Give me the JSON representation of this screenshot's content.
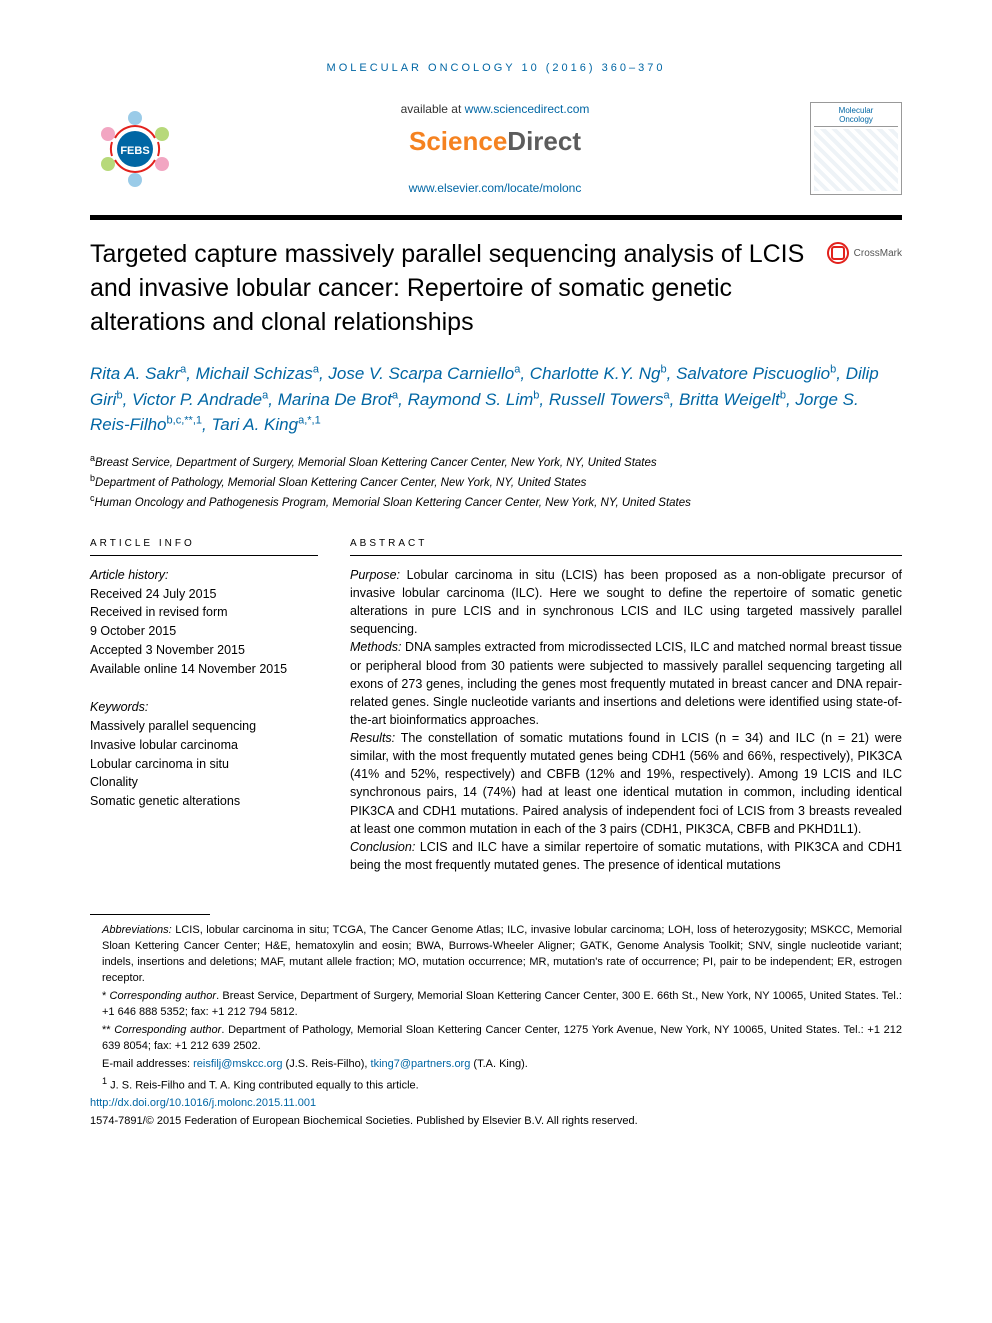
{
  "running_head": "MOLECULAR ONCOLOGY 10 (2016) 360–370",
  "masthead": {
    "available_prefix": "available at ",
    "available_link": "www.sciencedirect.com",
    "sd_sci": "Science",
    "sd_dir": "Direct",
    "locate": "www.elsevier.com/locate/molonc",
    "febs_label": "FEBS",
    "journal_name_line1": "Molecular",
    "journal_name_line2": "Oncology",
    "crossmark": "CrossMark"
  },
  "title": "Targeted capture massively parallel sequencing analysis of LCIS and invasive lobular cancer: Repertoire of somatic genetic alterations and clonal relationships",
  "authors_html": "Rita A. Sakr<sup>a</sup>, Michail Schizas<sup>a</sup>, Jose V. Scarpa Carniello<sup>a</sup>, Charlotte K.Y. Ng<sup>b</sup>, Salvatore Piscuoglio<sup>b</sup>, Dilip Giri<sup>b</sup>, Victor P. Andrade<sup>a</sup>, Marina De Brot<sup>a</sup>, Raymond S. Lim<sup>b</sup>, Russell Towers<sup>a</sup>, Britta Weigelt<sup>b</sup>, Jorge S. Reis-Filho<sup>b,c,**,1</sup>, Tari A. King<sup>a,*,1</sup>",
  "affiliations": [
    {
      "sup": "a",
      "text": "Breast Service, Department of Surgery, Memorial Sloan Kettering Cancer Center, New York, NY, United States"
    },
    {
      "sup": "b",
      "text": "Department of Pathology, Memorial Sloan Kettering Cancer Center, New York, NY, United States"
    },
    {
      "sup": "c",
      "text": "Human Oncology and Pathogenesis Program, Memorial Sloan Kettering Cancer Center, New York, NY, United States"
    }
  ],
  "article_info": {
    "label": "ARTICLE INFO",
    "history_hd": "Article history:",
    "history": [
      "Received 24 July 2015",
      "Received in revised form",
      "9 October 2015",
      "Accepted 3 November 2015",
      "Available online 14 November 2015"
    ],
    "keywords_hd": "Keywords:",
    "keywords": [
      "Massively parallel sequencing",
      "Invasive lobular carcinoma",
      "Lobular carcinoma in situ",
      "Clonality",
      "Somatic genetic alterations"
    ]
  },
  "abstract": {
    "label": "ABSTRACT",
    "purpose_hd": "Purpose:",
    "purpose": " Lobular carcinoma in situ (LCIS) has been proposed as a non-obligate precursor of invasive lobular carcinoma (ILC). Here we sought to define the repertoire of somatic genetic alterations in pure LCIS and in synchronous LCIS and ILC using targeted massively parallel sequencing.",
    "methods_hd": "Methods:",
    "methods": " DNA samples extracted from microdissected LCIS, ILC and matched normal breast tissue or peripheral blood from 30 patients were subjected to massively parallel sequencing targeting all exons of 273 genes, including the genes most frequently mutated in breast cancer and DNA repair-related genes. Single nucleotide variants and insertions and deletions were identified using state-of-the-art bioinformatics approaches.",
    "results_hd": "Results:",
    "results": " The constellation of somatic mutations found in LCIS (n = 34) and ILC (n = 21) were similar, with the most frequently mutated genes being CDH1 (56% and 66%, respectively), PIK3CA (41% and 52%, respectively) and CBFB (12% and 19%, respectively). Among 19 LCIS and ILC synchronous pairs, 14 (74%) had at least one identical mutation in common, including identical PIK3CA and CDH1 mutations. Paired analysis of independent foci of LCIS from 3 breasts revealed at least one common mutation in each of the 3 pairs (CDH1, PIK3CA, CBFB and PKHD1L1).",
    "conclusion_hd": "Conclusion:",
    "conclusion": " LCIS and ILC have a similar repertoire of somatic mutations, with PIK3CA and CDH1 being the most frequently mutated genes. The presence of identical mutations"
  },
  "footnotes": {
    "abbrev_hd": "Abbreviations:",
    "abbrev": " LCIS, lobular carcinoma in situ; TCGA, The Cancer Genome Atlas; ILC, invasive lobular carcinoma; LOH, loss of heterozygosity; MSKCC, Memorial Sloan Kettering Cancer Center; H&E, hematoxylin and eosin; BWA, Burrows-Wheeler Aligner; GATK, Genome Analysis Toolkit; SNV, single nucleotide variant; indels, insertions and deletions; MAF, mutant allele fraction; MO, mutation occurrence; MR, mutation's rate of occurrence; PI, pair to be independent; ER, estrogen receptor.",
    "corr1_mark": "*",
    "corr1_hd": " Corresponding author",
    "corr1": ". Breast Service, Department of Surgery, Memorial Sloan Kettering Cancer Center, 300 E. 66th St., New York, NY 10065, United States. Tel.: +1 646 888 5352; fax: +1 212 794 5812.",
    "corr2_mark": "**",
    "corr2_hd": " Corresponding author",
    "corr2": ". Department of Pathology, Memorial Sloan Kettering Cancer Center, 1275 York Avenue, New York, NY 10065, United States. Tel.: +1 212 639 8054; fax: +1 212 639 2502.",
    "email_hd": "E-mail addresses: ",
    "email1": "reisfilj@mskcc.org",
    "email1_who": " (J.S. Reis-Filho), ",
    "email2": "tking7@partners.org",
    "email2_who": " (T.A. King).",
    "equal_mark": "1",
    "equal": " J. S. Reis-Filho and T. A. King contributed equally to this article.",
    "doi": "http://dx.doi.org/10.1016/j.molonc.2015.11.001",
    "issn_line": "1574-7891/© 2015 Federation of European Biochemical Societies. Published by Elsevier B.V. All rights reserved."
  },
  "colors": {
    "link": "#0066a4",
    "orange": "#f58220",
    "red": "#e2211c"
  }
}
